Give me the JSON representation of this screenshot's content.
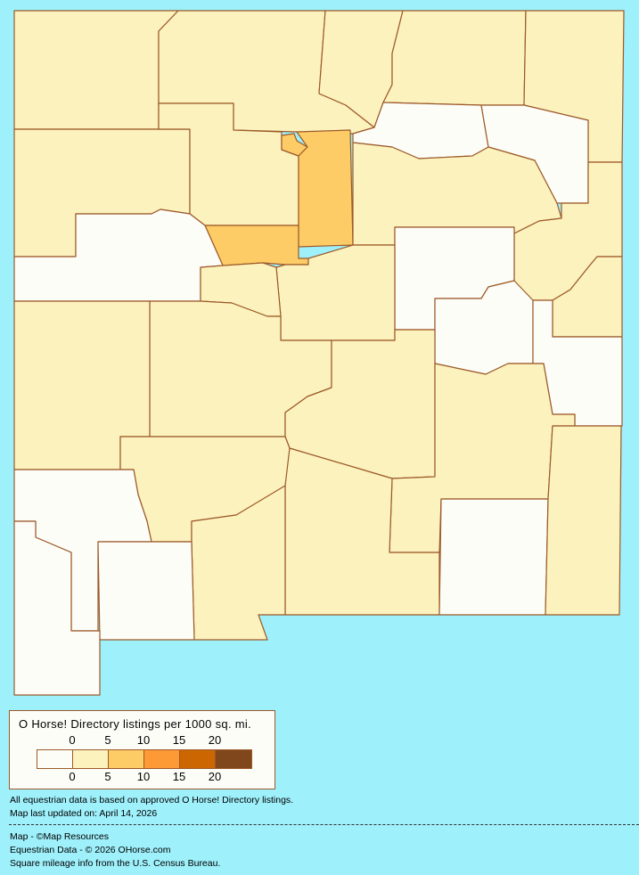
{
  "colors": {
    "background": "#9ef0fb",
    "border": "#9c5a2a",
    "bins": [
      "#fdfdf8",
      "#fcf2bd",
      "#fecc66",
      "#fe9a35",
      "#cc6600",
      "#7f471b"
    ]
  },
  "map": {
    "region_bins": [
      1,
      1,
      1,
      1,
      1,
      0,
      0,
      1,
      1,
      2,
      2,
      2,
      0,
      1,
      1,
      0,
      1,
      1,
      1,
      0,
      0,
      1,
      1,
      1,
      1,
      1,
      1,
      0,
      1,
      1,
      0,
      0
    ]
  },
  "legend": {
    "title": "O Horse! Directory listings per 1000 sq. mi.",
    "ticks_top": [
      "0",
      "5",
      "10",
      "15",
      "20"
    ],
    "ticks_bottom": [
      "0",
      "5",
      "10",
      "15",
      "20"
    ]
  },
  "notes": {
    "line1": "All equestrian data is based on approved O Horse! Directory listings.",
    "line2": "Map last updated on: April 14, 2026",
    "credit_map": "Map - ©Map Resources",
    "credit_data": "Equestrian Data - © 2026 OHorse.com",
    "credit_census": "Square mileage info from the U.S. Census Bureau."
  }
}
